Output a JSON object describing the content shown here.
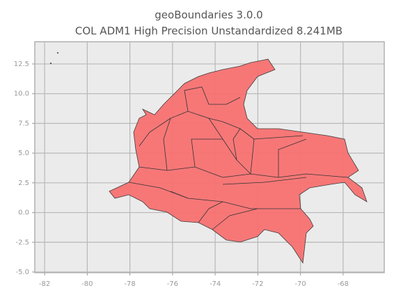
{
  "chart_data": {
    "type": "map",
    "title": "geoBoundaries 3.0.0",
    "subtitle": "COL ADM1 High Precision Unstandardized 8.241MB",
    "xlim": [
      -82.46,
      -66.07
    ],
    "ylim": [
      -5.06,
      14.37
    ],
    "xticks": [
      -82,
      -80,
      -78,
      -76,
      -74,
      -72,
      -70,
      -68
    ],
    "yticks": [
      12.5,
      {
        "value": 10,
        "label": "10.0"
      },
      {
        "value": 7.5,
        "label": "7.5"
      },
      {
        "value": 5,
        "label": "5.0"
      },
      2.5,
      {
        "value": 0,
        "label": "0.0"
      },
      -2.5,
      {
        "value": -5,
        "label": "-5.0"
      }
    ],
    "grid": true,
    "color": "#f87171"
  }
}
